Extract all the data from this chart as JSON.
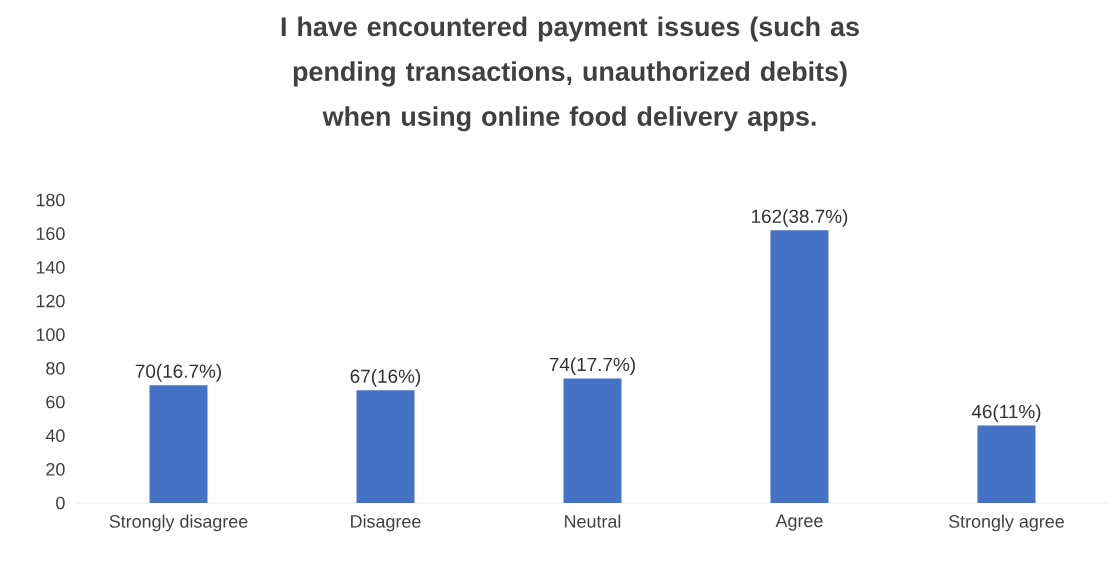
{
  "chart_data": {
    "type": "bar",
    "title": "I have encountered payment issues (such as pending transactions, unauthorized debits) when using online food delivery apps.",
    "categories": [
      "Strongly disagree",
      "Disagree",
      "Neutral",
      "Agree",
      "Strongly agree"
    ],
    "values": [
      70,
      67,
      74,
      162,
      46
    ],
    "value_labels": [
      "70(16.7%)",
      "67(16%)",
      "74(17.7%)",
      "162(38.7%)",
      "46(11%)"
    ],
    "color": "#4472c4",
    "ylim": [
      0,
      180
    ],
    "yticks": [
      0,
      20,
      40,
      60,
      80,
      100,
      120,
      140,
      160,
      180
    ]
  }
}
